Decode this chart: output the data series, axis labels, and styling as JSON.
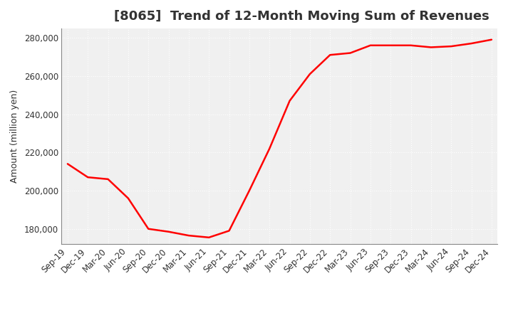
{
  "title": "[8065]  Trend of 12-Month Moving Sum of Revenues",
  "ylabel": "Amount (million yen)",
  "background_color": "#ffffff",
  "plot_bg_color": "#f0f0f0",
  "grid_color": "#ffffff",
  "line_color": "#ff0000",
  "ylim": [
    172000,
    285000
  ],
  "yticks": [
    180000,
    200000,
    220000,
    240000,
    260000,
    280000
  ],
  "x_labels": [
    "Sep-19",
    "Dec-19",
    "Mar-20",
    "Jun-20",
    "Sep-20",
    "Dec-20",
    "Mar-21",
    "Jun-21",
    "Sep-21",
    "Dec-21",
    "Mar-22",
    "Jun-22",
    "Sep-22",
    "Dec-22",
    "Mar-23",
    "Jun-23",
    "Sep-23",
    "Dec-23",
    "Mar-24",
    "Jun-24",
    "Sep-24",
    "Dec-24"
  ],
  "values": [
    214000,
    207000,
    206000,
    196000,
    180000,
    178500,
    176500,
    175500,
    179000,
    200000,
    222000,
    247000,
    261000,
    271000,
    272000,
    276000,
    276000,
    276000,
    275000,
    275500,
    277000,
    279000
  ]
}
